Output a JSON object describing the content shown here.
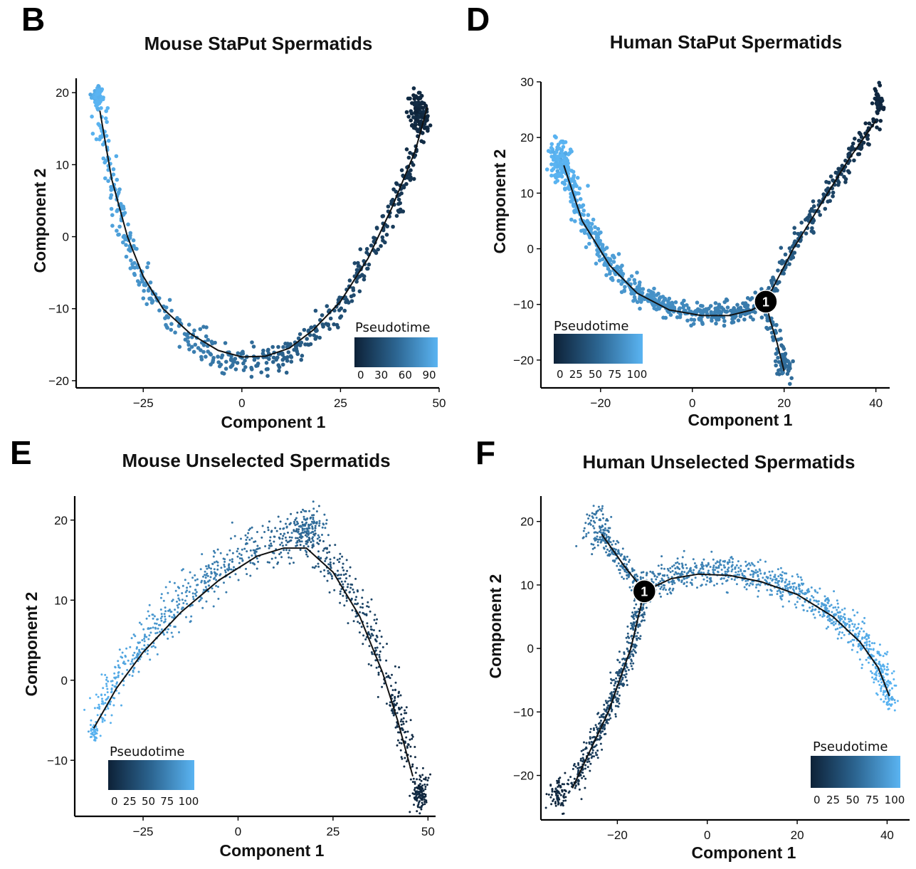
{
  "colors": {
    "low": "#0d2137",
    "mid": "#2c6591",
    "high": "#5ab4f2",
    "axis": "#000000",
    "line": "#111111"
  },
  "chart_data": [
    {
      "letter": "B",
      "type": "scatter",
      "title": "Mouse StaPut Spermatids",
      "xlabel": "Component 1",
      "ylabel": "Component 2",
      "xlim": [
        -42,
        50
      ],
      "ylim": [
        -21,
        22
      ],
      "xticks": [
        -25,
        0,
        25,
        50
      ],
      "yticks": [
        -20,
        -10,
        0,
        10,
        20
      ],
      "xtick_labels": [
        "−25",
        "0",
        "25",
        "50"
      ],
      "ytick_labels": [
        "−20",
        "−10",
        "0",
        "10",
        "20"
      ],
      "point_size": "large",
      "legend": {
        "title": "Pseudotime",
        "position": "bottom-right",
        "ticks": [
          "0",
          "30",
          "60",
          "90"
        ]
      },
      "trajectory": [
        [
          -36,
          17.5
        ],
        [
          -33,
          8
        ],
        [
          -29,
          0
        ],
        [
          -25,
          -5.5
        ],
        [
          -20,
          -10
        ],
        [
          -13,
          -13.5
        ],
        [
          -6,
          -15.8
        ],
        [
          0,
          -16.7
        ],
        [
          6,
          -16.6
        ],
        [
          12,
          -15.5
        ],
        [
          18,
          -13
        ],
        [
          25,
          -9
        ],
        [
          32,
          -3
        ],
        [
          38,
          4
        ],
        [
          44,
          12
        ],
        [
          47,
          18
        ]
      ],
      "clusters": [
        {
          "x": -36.5,
          "y": 19.5,
          "sx": 0.6,
          "sy": 1.0,
          "t": 1.0,
          "n": 50
        },
        {
          "x": 45,
          "y": 17.5,
          "sx": 1.2,
          "sy": 1.5,
          "t": 0.05,
          "n": 80
        }
      ],
      "branches": []
    },
    {
      "letter": "D",
      "type": "scatter",
      "title": "Human StaPut Spermatids",
      "xlabel": "Component 1",
      "ylabel": "Component 2",
      "xlim": [
        -33,
        43
      ],
      "ylim": [
        -25,
        30
      ],
      "xticks": [
        -20,
        0,
        20,
        40
      ],
      "yticks": [
        -20,
        -10,
        0,
        10,
        20,
        30
      ],
      "xtick_labels": [
        "−20",
        "0",
        "20",
        "40"
      ],
      "ytick_labels": [
        "−20",
        "−10",
        "0",
        "10",
        "20",
        "30"
      ],
      "point_size": "large",
      "legend": {
        "title": "Pseudotime",
        "position": "bottom-left",
        "ticks": [
          "0",
          "25",
          "50",
          "75",
          "100"
        ]
      },
      "trajectory": [
        [
          -28,
          15
        ],
        [
          -24,
          5
        ],
        [
          -18,
          -3
        ],
        [
          -12,
          -8
        ],
        [
          -5,
          -11
        ],
        [
          2,
          -12
        ],
        [
          8,
          -12
        ],
        [
          13,
          -11
        ],
        [
          16,
          -9.5
        ]
      ],
      "trajectory_branches": [
        [
          [
            16,
            -9.5
          ],
          [
            22,
            0
          ],
          [
            28,
            8
          ],
          [
            34,
            16
          ],
          [
            40,
            23
          ]
        ],
        [
          [
            16,
            -9.5
          ],
          [
            17,
            -13
          ],
          [
            18.5,
            -17
          ],
          [
            20,
            -22
          ]
        ]
      ],
      "clusters": [
        {
          "x": -29,
          "y": 16,
          "sx": 1.2,
          "sy": 2.0,
          "t": 1.0,
          "n": 90
        },
        {
          "x": 40.5,
          "y": 26,
          "sx": 0.7,
          "sy": 1.5,
          "t": 0.05,
          "n": 40
        },
        {
          "x": 20,
          "y": -21,
          "sx": 0.8,
          "sy": 1.5,
          "t": 0.55,
          "n": 25
        }
      ],
      "branches": [
        {
          "x": 16,
          "y": -9.5,
          "label": "1"
        }
      ]
    },
    {
      "letter": "E",
      "type": "scatter",
      "title": "Mouse Unselected Spermatids",
      "xlabel": "Component 1",
      "ylabel": "Component 2",
      "xlim": [
        -43,
        52
      ],
      "ylim": [
        -17,
        23
      ],
      "xticks": [
        -25,
        0,
        25,
        50
      ],
      "yticks": [
        -10,
        0,
        10,
        20
      ],
      "xtick_labels": [
        "−25",
        "0",
        "25",
        "50"
      ],
      "ytick_labels": [
        "−10",
        "0",
        "10",
        "20"
      ],
      "point_size": "small",
      "legend": {
        "title": "Pseudotime",
        "position": "bottom-left",
        "ticks": [
          "0",
          "25",
          "50",
          "75",
          "100"
        ]
      },
      "trajectory": [
        [
          -38,
          -6
        ],
        [
          -32,
          -1
        ],
        [
          -25,
          3.5
        ],
        [
          -15,
          8.5
        ],
        [
          -5,
          12.5
        ],
        [
          5,
          15.5
        ],
        [
          12,
          16.5
        ],
        [
          18,
          16.5
        ],
        [
          25,
          13.5
        ],
        [
          32,
          8
        ],
        [
          38,
          1
        ],
        [
          42,
          -5
        ],
        [
          46,
          -12
        ]
      ],
      "clusters": [
        {
          "x": 48,
          "y": -14,
          "sx": 1.0,
          "sy": 1.2,
          "t": 0.05,
          "n": 120
        },
        {
          "x": -38,
          "y": -6.5,
          "sx": 0.5,
          "sy": 0.6,
          "t": 1.0,
          "n": 40
        },
        {
          "x": 18,
          "y": 19,
          "sx": 2.5,
          "sy": 1.0,
          "t": 0.55,
          "n": 120
        }
      ],
      "branches": []
    },
    {
      "letter": "F",
      "type": "scatter",
      "title": "Human Unselected Spermatids",
      "xlabel": "Component 1",
      "ylabel": "Component 2",
      "xlim": [
        -37,
        45
      ],
      "ylim": [
        -27,
        24
      ],
      "xticks": [
        -20,
        0,
        20,
        40
      ],
      "yticks": [
        -20,
        -10,
        0,
        10,
        20
      ],
      "xtick_labels": [
        "−20",
        "0",
        "20",
        "40"
      ],
      "ytick_labels": [
        "−20",
        "−10",
        "0",
        "10",
        "20"
      ],
      "point_size": "small",
      "legend": {
        "title": "Pseudotime",
        "position": "bottom-right",
        "ticks": [
          "0",
          "25",
          "50",
          "75",
          "100"
        ]
      },
      "trajectory": [
        [
          -14,
          9
        ],
        [
          -8,
          11
        ],
        [
          -2,
          11.7
        ],
        [
          5,
          11.5
        ],
        [
          12,
          10.5
        ],
        [
          20,
          8.5
        ],
        [
          28,
          5
        ],
        [
          34,
          1
        ],
        [
          38,
          -3
        ],
        [
          40.5,
          -7.5
        ]
      ],
      "trajectory_branches": [
        [
          [
            -14,
            9
          ],
          [
            -18.5,
            13
          ],
          [
            -23.5,
            18
          ]
        ],
        [
          [
            -14,
            9
          ],
          [
            -17,
            0
          ],
          [
            -22,
            -10
          ],
          [
            -27,
            -17.5
          ],
          [
            -30,
            -22
          ]
        ]
      ],
      "clusters": [
        {
          "x": -24.5,
          "y": 19,
          "sx": 1.5,
          "sy": 1.8,
          "t": 0.6,
          "n": 90
        },
        {
          "x": -33,
          "y": -23,
          "sx": 1.0,
          "sy": 1.2,
          "t": 0.05,
          "n": 80
        },
        {
          "x": 40.5,
          "y": -8,
          "sx": 0.7,
          "sy": 0.8,
          "t": 1.0,
          "n": 30
        }
      ],
      "branches": [
        {
          "x": -14,
          "y": 9,
          "label": "1"
        }
      ]
    }
  ]
}
